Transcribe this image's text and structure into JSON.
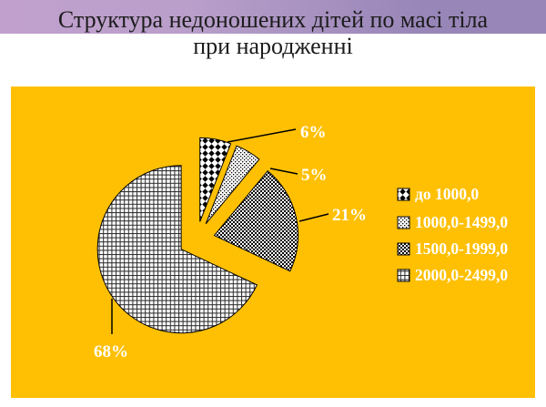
{
  "title": {
    "line1": "Структура недоношених дітей по масі тіла",
    "line2": "при народженні"
  },
  "colors": {
    "panel_bg": "#FFC003",
    "band_start": "#C2A0CD",
    "band_end": "#9886B8",
    "title_text": "#1C1C1C",
    "label_text": "#FFFFFF",
    "leader_line": "#000000",
    "pattern_fg": "#000000",
    "pattern_bg": "#FFFFFF"
  },
  "chart_data": {
    "type": "pie",
    "title": "Структура недоношених дітей по масі тіла при народженні",
    "unit": "percent",
    "start_angle_deg": 0,
    "direction": "clockwise",
    "exploded": true,
    "grid": false,
    "legend_position": "right",
    "slices": [
      {
        "label": "до 1000,0",
        "value": 6,
        "display": "6%",
        "pattern": "diamond-grid"
      },
      {
        "label": "1000,0-1499,0",
        "value": 5,
        "display": "5%",
        "pattern": "dot-dither"
      },
      {
        "label": "1500,0-1999,0",
        "value": 21,
        "display": "21%",
        "pattern": "checkerboard"
      },
      {
        "label": "2000,0-2499,0",
        "value": 68,
        "display": "68%",
        "pattern": "fine-grid"
      }
    ]
  }
}
